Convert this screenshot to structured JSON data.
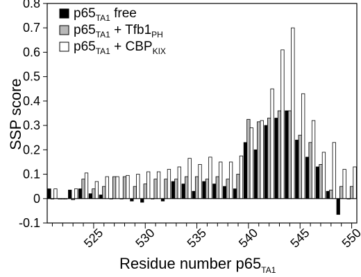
{
  "chart_data": {
    "type": "bar",
    "xlabel": {
      "main": "Residue number p65",
      "sub": "TA1"
    },
    "ylabel": "SSP score",
    "ylim": [
      -0.1,
      0.8
    ],
    "xlim": [
      520.5,
      550.5
    ],
    "grid": false,
    "legend_position": "top-left",
    "y_ticks": [
      "0.8",
      "0.7",
      "0.6",
      "0.5",
      "0.4",
      "0.3",
      "0.2",
      "0.1",
      "0",
      "-0.1"
    ],
    "y_tick_values": [
      0.8,
      0.7,
      0.6,
      0.5,
      0.4,
      0.3,
      0.2,
      0.1,
      0,
      -0.1
    ],
    "x_ticks": [
      "525",
      "530",
      "535",
      "540",
      "545",
      "550"
    ],
    "x_tick_values": [
      525,
      530,
      535,
      540,
      545,
      550
    ],
    "x": [
      521,
      522,
      523,
      524,
      525,
      526,
      527,
      528,
      529,
      530,
      531,
      532,
      533,
      534,
      535,
      536,
      537,
      538,
      539,
      540,
      541,
      542,
      543,
      544,
      545,
      546,
      547,
      548,
      549,
      550
    ],
    "series": [
      {
        "legend": {
          "main": "p65",
          "sub": "TA1",
          "suffix": " free",
          "suffix_sub": ""
        },
        "color": "#000000",
        "values": [
          0.04,
          0.0,
          0.035,
          0.04,
          0.02,
          0.015,
          0.0,
          0.0,
          -0.01,
          -0.015,
          0.0,
          -0.01,
          0.07,
          0.06,
          0.03,
          0.07,
          0.06,
          0.05,
          0.04,
          0.23,
          0.2,
          0.3,
          0.33,
          0.36,
          0.24,
          0.17,
          0.13,
          0.03,
          -0.065,
          0.0
        ]
      },
      {
        "legend": {
          "main": "p65",
          "sub": "TA1",
          "suffix": " + Tfb1",
          "suffix_sub": "PH"
        },
        "color": "#b8b8b8",
        "values": [
          0.0,
          0.0,
          -0.005,
          0.08,
          0.04,
          0.05,
          0.09,
          0.09,
          0.05,
          0.06,
          0.08,
          0.08,
          0.08,
          0.09,
          0.09,
          0.08,
          0.09,
          0.08,
          0.1,
          0.325,
          0.315,
          0.33,
          0.36,
          0.36,
          0.26,
          0.23,
          0.14,
          0.035,
          0.05,
          0.05
        ]
      },
      {
        "legend": {
          "main": "p65",
          "sub": "TA1",
          "suffix": " + CBP",
          "suffix_sub": "KIX"
        },
        "color": "#ffffff",
        "values": [
          0.04,
          0.0,
          0.04,
          0.105,
          0.07,
          0.09,
          0.09,
          0.095,
          0.1,
          0.11,
          0.11,
          0.12,
          0.13,
          0.165,
          0.14,
          0.17,
          0.15,
          0.15,
          0.175,
          0.29,
          0.32,
          0.45,
          0.61,
          0.7,
          0.43,
          0.32,
          0.19,
          0.23,
          0.12,
          0.13
        ]
      }
    ]
  }
}
